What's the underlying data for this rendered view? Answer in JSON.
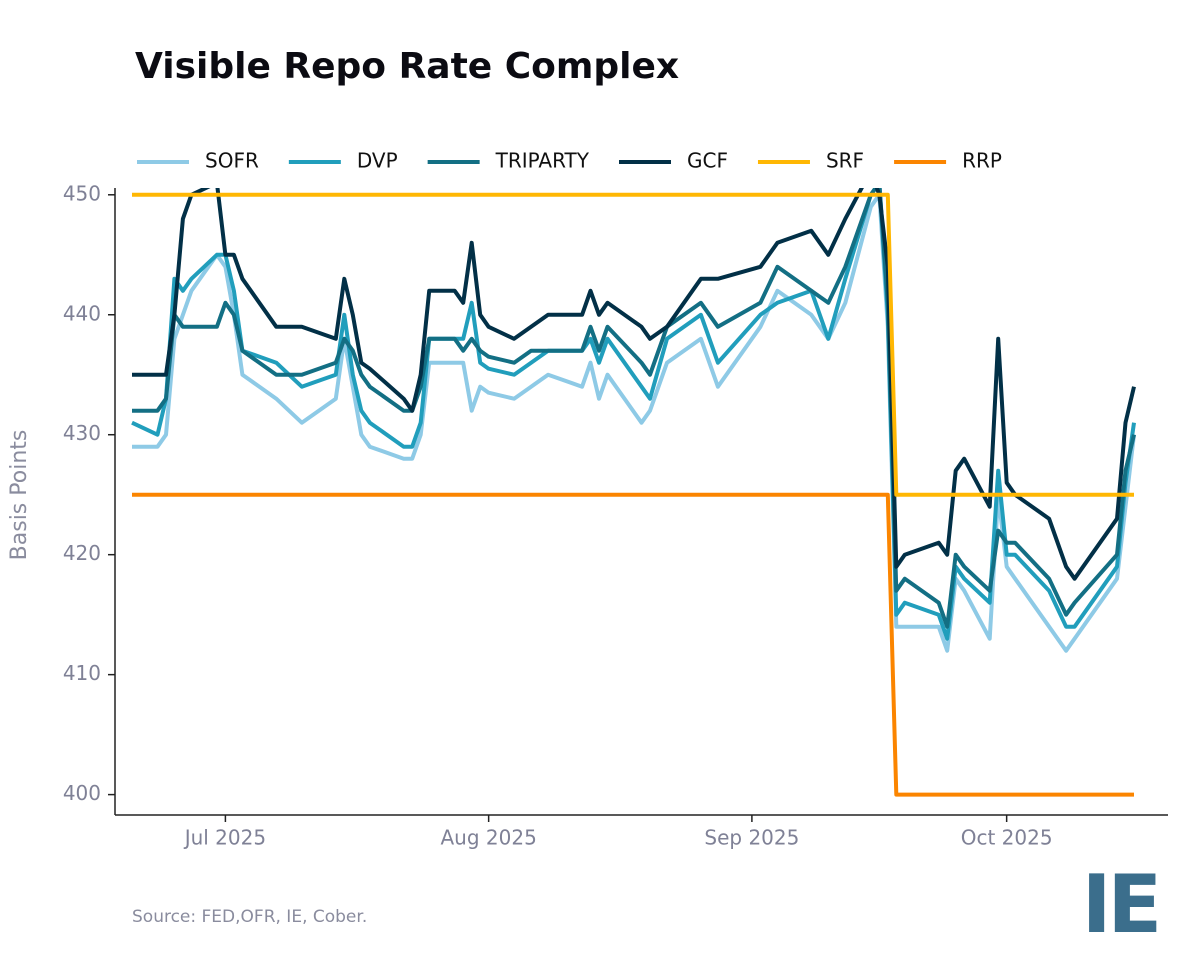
{
  "chart_data": {
    "type": "line",
    "title": "Visible Repo Rate Complex",
    "ylabel": "Basis Points",
    "source": "Source: FED,OFR, IE, Cober.",
    "logo": "IE",
    "legend": "top",
    "x": [
      "2025-06-20",
      "2025-06-23",
      "2025-06-24",
      "2025-06-25",
      "2025-06-26",
      "2025-06-27",
      "2025-06-30",
      "2025-07-01",
      "2025-07-02",
      "2025-07-03",
      "2025-07-07",
      "2025-07-10",
      "2025-07-14",
      "2025-07-15",
      "2025-07-16",
      "2025-07-17",
      "2025-07-18",
      "2025-07-22",
      "2025-07-23",
      "2025-07-24",
      "2025-07-25",
      "2025-07-28",
      "2025-07-29",
      "2025-07-30",
      "2025-07-31",
      "2025-08-01",
      "2025-08-04",
      "2025-08-06",
      "2025-08-08",
      "2025-08-12",
      "2025-08-13",
      "2025-08-14",
      "2025-08-15",
      "2025-08-19",
      "2025-08-20",
      "2025-08-22",
      "2025-08-26",
      "2025-08-28",
      "2025-09-02",
      "2025-09-04",
      "2025-09-08",
      "2025-09-10",
      "2025-09-12",
      "2025-09-15",
      "2025-09-16",
      "2025-09-17",
      "2025-09-18",
      "2025-09-19",
      "2025-09-23",
      "2025-09-24",
      "2025-09-25",
      "2025-09-26",
      "2025-09-29",
      "2025-09-30",
      "2025-10-01",
      "2025-10-02",
      "2025-10-06",
      "2025-10-08",
      "2025-10-09",
      "2025-10-14",
      "2025-10-15",
      "2025-10-16"
    ],
    "series": [
      {
        "name": "SOFR",
        "color": "#8ecae6",
        "values": [
          429,
          429,
          430,
          438,
          440,
          442,
          445,
          444,
          440,
          435,
          433,
          431,
          433,
          438,
          434,
          430,
          429,
          428,
          428,
          430,
          436,
          436,
          436,
          432,
          434,
          433.5,
          433,
          434,
          435,
          434,
          436,
          433,
          435,
          431,
          432,
          436,
          438,
          434,
          439,
          442,
          440,
          438,
          441,
          449,
          450,
          439,
          414,
          414,
          414,
          412,
          418,
          417,
          413,
          425,
          419,
          418,
          414,
          412,
          413,
          418,
          424,
          430
        ]
      },
      {
        "name": "DVP",
        "color": "#219ebc",
        "values": [
          431,
          430,
          433,
          443,
          442,
          443,
          445,
          445,
          442,
          437,
          436,
          434,
          435,
          440,
          435,
          432,
          431,
          429,
          429,
          431,
          438,
          438,
          438,
          441,
          436,
          435.5,
          435,
          436,
          437,
          437,
          438,
          436,
          438,
          434,
          433,
          438,
          440,
          436,
          440,
          441,
          442,
          438,
          443,
          450,
          451,
          440,
          415,
          416,
          415,
          413,
          419,
          418,
          416,
          427,
          420,
          420,
          417,
          414,
          414,
          419,
          426,
          431
        ]
      },
      {
        "name": "TRIPARTY",
        "color": "#136f84",
        "values": [
          432,
          432,
          433,
          440,
          439,
          439,
          439,
          441,
          440,
          437,
          435,
          435,
          436,
          438,
          437,
          435,
          434,
          432,
          432,
          434,
          438,
          438,
          437,
          438,
          437,
          436.5,
          436,
          437,
          437,
          437,
          439,
          437,
          439,
          436,
          435,
          439,
          441,
          439,
          441,
          444,
          442,
          441,
          444,
          450,
          451,
          441,
          417,
          418,
          416,
          414,
          420,
          419,
          417,
          422,
          421,
          421,
          418,
          415,
          416,
          420,
          427,
          430
        ]
      },
      {
        "name": "GCF",
        "color": "#023047",
        "values": [
          435,
          435,
          435,
          440,
          448,
          450,
          451,
          445,
          445,
          443,
          439,
          439,
          438,
          443,
          440,
          436,
          435.5,
          433,
          432,
          435,
          442,
          442,
          441,
          446,
          440,
          439,
          438,
          439,
          440,
          440,
          442,
          440,
          441,
          439,
          438,
          439,
          443,
          443,
          444,
          446,
          447,
          445,
          448,
          452,
          450,
          444,
          419,
          420,
          421,
          420,
          427,
          428,
          424,
          438,
          426,
          425,
          423,
          419,
          418,
          423,
          431,
          434
        ]
      },
      {
        "name": "SRF",
        "color": "#ffb703",
        "values": [
          450,
          450,
          450,
          450,
          450,
          450,
          450,
          450,
          450,
          450,
          450,
          450,
          450,
          450,
          450,
          450,
          450,
          450,
          450,
          450,
          450,
          450,
          450,
          450,
          450,
          450,
          450,
          450,
          450,
          450,
          450,
          450,
          450,
          450,
          450,
          450,
          450,
          450,
          450,
          450,
          450,
          450,
          450,
          450,
          450,
          450,
          425,
          425,
          425,
          425,
          425,
          425,
          425,
          425,
          425,
          425,
          425,
          425,
          425,
          425,
          425,
          425
        ]
      },
      {
        "name": "RRP",
        "color": "#fb8500",
        "values": [
          425,
          425,
          425,
          425,
          425,
          425,
          425,
          425,
          425,
          425,
          425,
          425,
          425,
          425,
          425,
          425,
          425,
          425,
          425,
          425,
          425,
          425,
          425,
          425,
          425,
          425,
          425,
          425,
          425,
          425,
          425,
          425,
          425,
          425,
          425,
          425,
          425,
          425,
          425,
          425,
          425,
          425,
          425,
          425,
          425,
          425,
          400,
          400,
          400,
          400,
          400,
          400,
          400,
          400,
          400,
          400,
          400,
          400,
          400,
          400,
          400,
          400
        ]
      }
    ],
    "xlim": [
      "2025-06-18",
      "2025-10-20"
    ],
    "xticks": [
      {
        "value": "2025-07-01",
        "label": "Jul 2025"
      },
      {
        "value": "2025-08-01",
        "label": "Aug 2025"
      },
      {
        "value": "2025-09-01",
        "label": "Sep 2025"
      },
      {
        "value": "2025-10-01",
        "label": "Oct 2025"
      }
    ],
    "ylim": [
      398.3,
      450.4
    ],
    "yticks": [
      400,
      410,
      420,
      430,
      440,
      450
    ],
    "grid": false
  }
}
